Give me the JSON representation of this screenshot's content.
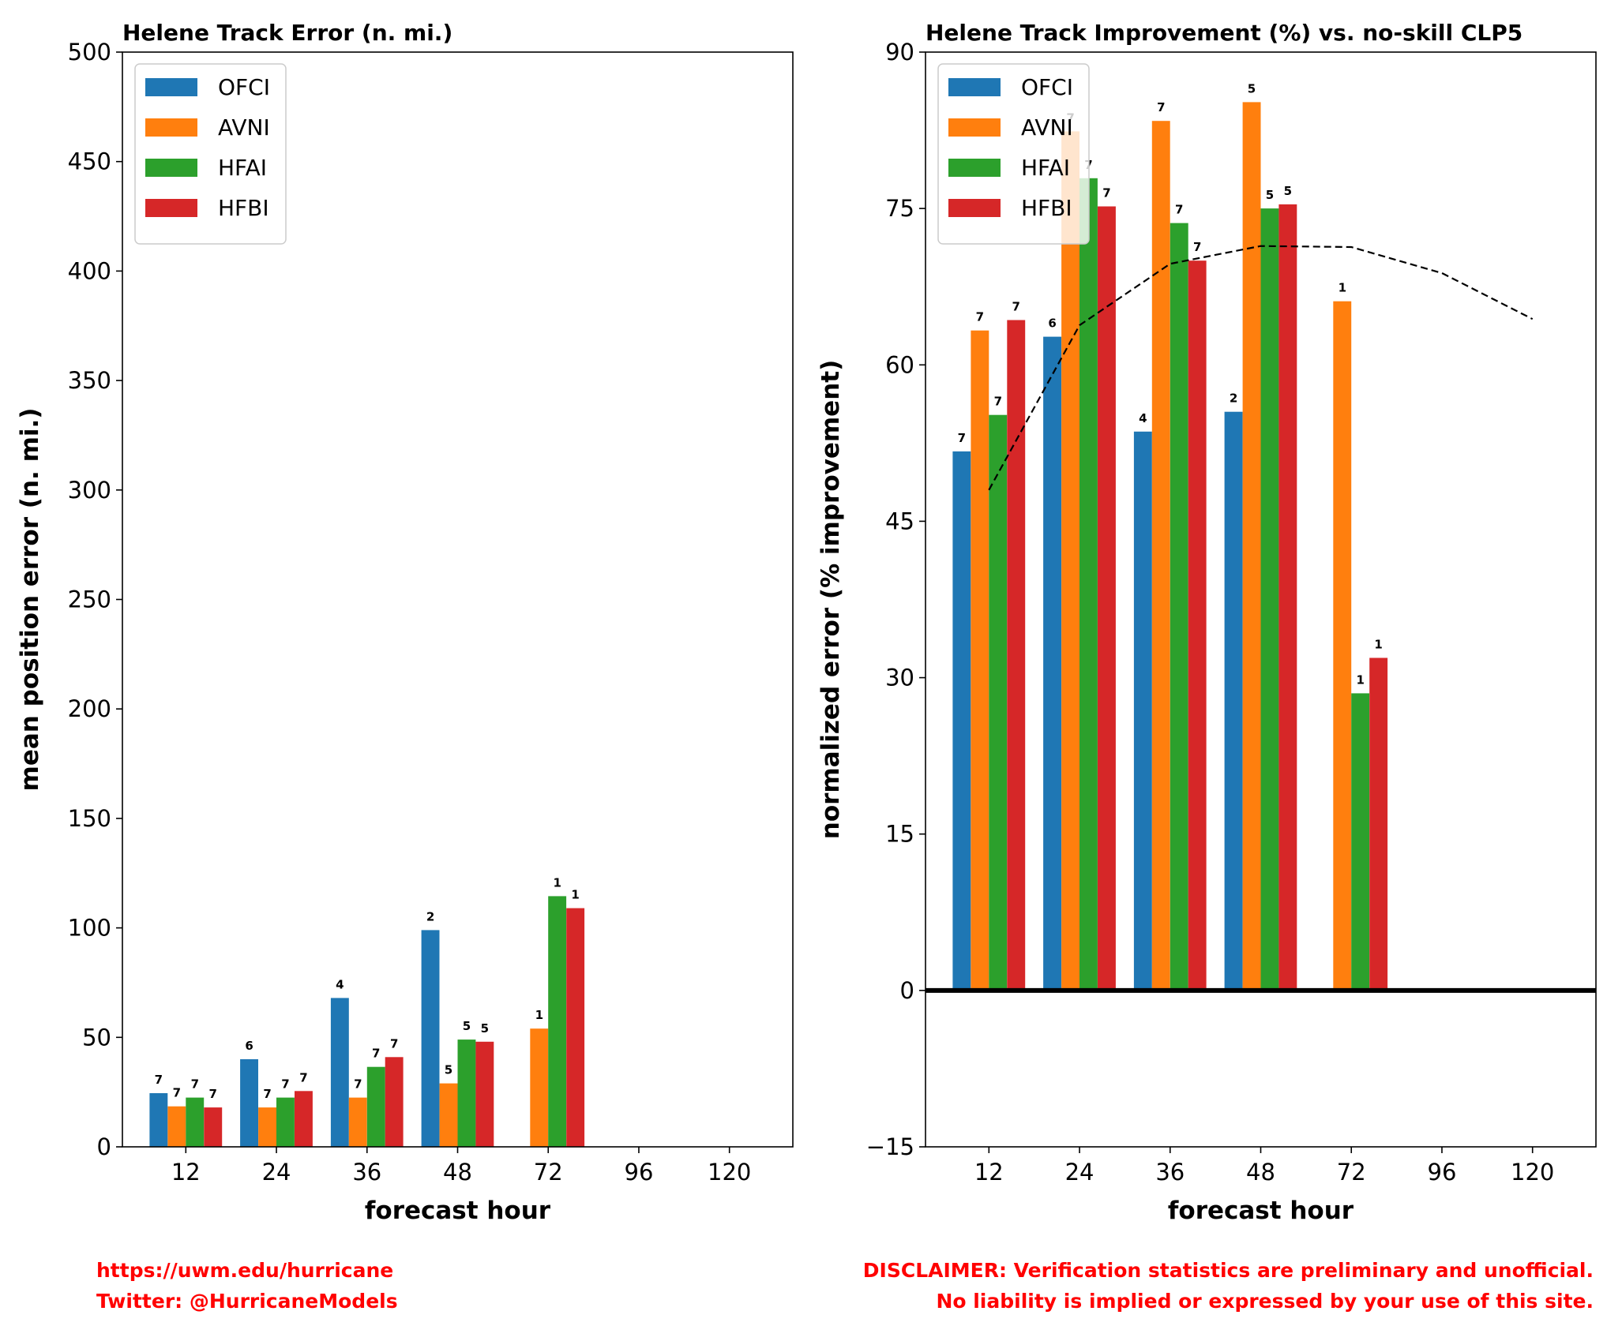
{
  "footer": {
    "url": "https://uwm.edu/hurricane",
    "twitter": "Twitter: @HurricaneModels",
    "disclaimer_1": "DISCLAIMER: Verification statistics are preliminary and unofficial.",
    "disclaimer_2": "No liability is implied or expressed by your use of this site."
  },
  "chart_data": [
    {
      "type": "bar",
      "title": "Helene Track Error (n. mi.)",
      "xlabel": "forecast hour",
      "ylabel": "mean position error (n. mi.)",
      "categories": [
        "12",
        "24",
        "36",
        "48",
        "72",
        "96",
        "120"
      ],
      "ylim": [
        0,
        500
      ],
      "yticks": [
        0,
        50,
        100,
        150,
        200,
        250,
        300,
        350,
        400,
        450,
        500
      ],
      "legend_position": "top-left",
      "grid": false,
      "series": [
        {
          "name": "OFCI",
          "color": "#1f77b4",
          "values": [
            24.5,
            40,
            68,
            99,
            null,
            null,
            null
          ],
          "counts": [
            7,
            6,
            4,
            2,
            null,
            null,
            null
          ]
        },
        {
          "name": "AVNI",
          "color": "#ff7f0e",
          "values": [
            18.5,
            18,
            22.5,
            29,
            54,
            null,
            null
          ],
          "counts": [
            7,
            7,
            7,
            5,
            1,
            null,
            null
          ]
        },
        {
          "name": "HFAI",
          "color": "#2ca02c",
          "values": [
            22.5,
            22.5,
            36.5,
            49,
            114.5,
            null,
            null
          ],
          "counts": [
            7,
            7,
            7,
            5,
            1,
            null,
            null
          ]
        },
        {
          "name": "HFBI",
          "color": "#d62728",
          "values": [
            18,
            25.5,
            41,
            48,
            109,
            null,
            null
          ],
          "counts": [
            7,
            7,
            7,
            5,
            1,
            null,
            null
          ]
        }
      ]
    },
    {
      "type": "bar",
      "title": "Helene Track Improvement (%) vs. no-skill CLP5",
      "xlabel": "forecast hour",
      "ylabel": "normalized error (% improvement)",
      "categories": [
        "12",
        "24",
        "36",
        "48",
        "72",
        "96",
        "120"
      ],
      "ylim": [
        -15,
        90
      ],
      "yticks": [
        -15,
        0,
        15,
        30,
        45,
        60,
        75,
        90
      ],
      "legend_position": "top-left",
      "grid": false,
      "zero_line": true,
      "series": [
        {
          "name": "OFCI",
          "color": "#1f77b4",
          "values": [
            51.7,
            62.7,
            53.6,
            55.5,
            null,
            null,
            null
          ],
          "counts": [
            7,
            6,
            4,
            2,
            null,
            null,
            null
          ]
        },
        {
          "name": "AVNI",
          "color": "#ff7f0e",
          "values": [
            63.3,
            82.4,
            83.4,
            85.2,
            66.1,
            null,
            null
          ],
          "counts": [
            7,
            7,
            7,
            5,
            1,
            null,
            null
          ]
        },
        {
          "name": "HFAI",
          "color": "#2ca02c",
          "values": [
            55.2,
            77.9,
            73.6,
            75.0,
            28.5,
            null,
            null
          ],
          "counts": [
            7,
            7,
            7,
            5,
            1,
            null,
            null
          ]
        },
        {
          "name": "HFBI",
          "color": "#d62728",
          "values": [
            64.3,
            75.2,
            70.0,
            75.4,
            31.9,
            null,
            null
          ],
          "counts": [
            7,
            7,
            7,
            5,
            1,
            null,
            null
          ]
        }
      ],
      "reference_line": {
        "style": "dashed",
        "color": "#000000",
        "values": [
          48.0,
          63.8,
          69.7,
          71.4,
          71.3,
          68.8,
          64.4
        ]
      }
    }
  ]
}
